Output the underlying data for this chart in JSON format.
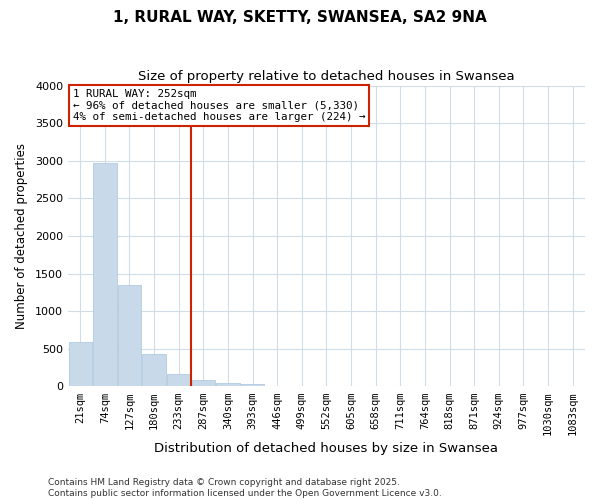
{
  "title_line1": "1, RURAL WAY, SKETTY, SWANSEA, SA2 9NA",
  "title_line2": "Size of property relative to detached houses in Swansea",
  "xlabel": "Distribution of detached houses by size in Swansea",
  "ylabel": "Number of detached properties",
  "bar_color": "#c8daea",
  "bar_edgecolor": "#a8c4de",
  "plot_bg_color": "#ffffff",
  "fig_bg_color": "#ffffff",
  "grid_color": "#d0dce8",
  "categories": [
    "21sqm",
    "74sqm",
    "127sqm",
    "180sqm",
    "233sqm",
    "287sqm",
    "340sqm",
    "393sqm",
    "446sqm",
    "499sqm",
    "552sqm",
    "605sqm",
    "658sqm",
    "711sqm",
    "764sqm",
    "818sqm",
    "871sqm",
    "924sqm",
    "977sqm",
    "1030sqm",
    "1083sqm"
  ],
  "values": [
    590,
    2970,
    1345,
    425,
    160,
    85,
    45,
    30,
    0,
    0,
    0,
    0,
    0,
    0,
    0,
    0,
    0,
    0,
    0,
    0,
    0
  ],
  "ylim": [
    0,
    4000
  ],
  "yticks": [
    0,
    500,
    1000,
    1500,
    2000,
    2500,
    3000,
    3500,
    4000
  ],
  "vline_x": 4.5,
  "vline_color": "#cc2200",
  "annotation_text": "1 RURAL WAY: 252sqm\n← 96% of detached houses are smaller (5,330)\n4% of semi-detached houses are larger (224) →",
  "annotation_box_edgecolor": "#cc2200",
  "annotation_text_color": "#000000",
  "footnote_line1": "Contains HM Land Registry data © Crown copyright and database right 2025.",
  "footnote_line2": "Contains public sector information licensed under the Open Government Licence v3.0.",
  "title_fontsize": 11,
  "subtitle_fontsize": 9.5,
  "ylabel_fontsize": 8.5,
  "xlabel_fontsize": 9.5,
  "tick_fontsize": 7.5,
  "footnote_fontsize": 6.5
}
